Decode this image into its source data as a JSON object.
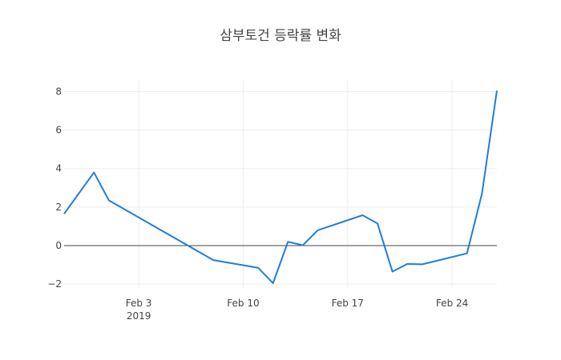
{
  "chart_data": {
    "type": "line",
    "title": "삼부토건 등락률 변화",
    "xlabel": "",
    "ylabel": "",
    "x_range": [
      "2019-01-29",
      "2019-02-27"
    ],
    "ylim": [
      -2.2,
      8.6
    ],
    "grid": true,
    "zero_line": true,
    "x_ticks": [
      {
        "date": "2019-02-03",
        "label": "Feb 3",
        "sublabel": "2019"
      },
      {
        "date": "2019-02-10",
        "label": "Feb 10",
        "sublabel": ""
      },
      {
        "date": "2019-02-17",
        "label": "Feb 17",
        "sublabel": ""
      },
      {
        "date": "2019-02-24",
        "label": "Feb 24",
        "sublabel": ""
      }
    ],
    "y_ticks": [
      {
        "value": -2,
        "label": "−2"
      },
      {
        "value": 0,
        "label": "0"
      },
      {
        "value": 2,
        "label": "2"
      },
      {
        "value": 4,
        "label": "4"
      },
      {
        "value": 6,
        "label": "6"
      },
      {
        "value": 8,
        "label": "8"
      }
    ],
    "series": [
      {
        "color": "#1f7ce0",
        "x": [
          "2019-01-29",
          "2019-01-31",
          "2019-02-01",
          "2019-02-08",
          "2019-02-11",
          "2019-02-12",
          "2019-02-13",
          "2019-02-14",
          "2019-02-15",
          "2019-02-18",
          "2019-02-19",
          "2019-02-20",
          "2019-02-21",
          "2019-02-22",
          "2019-02-25",
          "2019-02-26",
          "2019-02-27"
        ],
        "values": [
          1.65,
          3.8,
          2.35,
          -0.75,
          -1.15,
          -1.95,
          0.2,
          0.02,
          0.8,
          1.58,
          1.15,
          -1.35,
          -0.95,
          -0.97,
          -0.4,
          2.7,
          8.05
        ]
      }
    ]
  }
}
